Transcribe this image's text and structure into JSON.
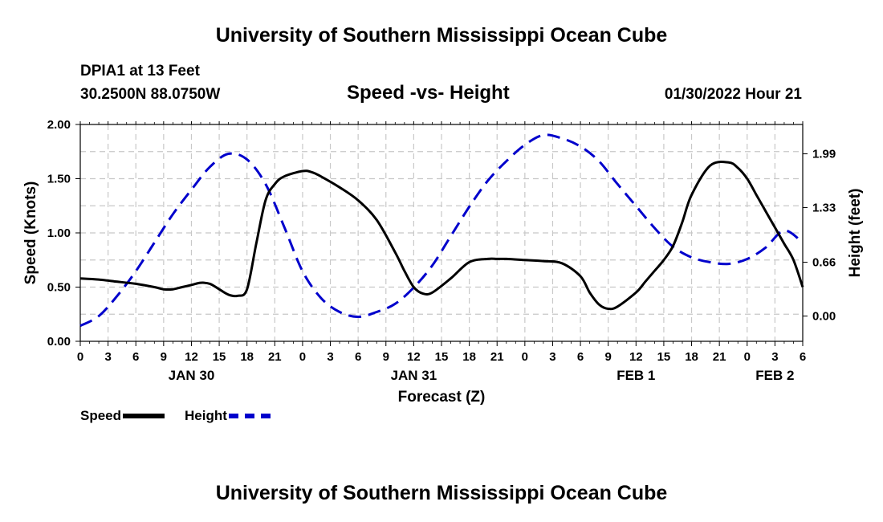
{
  "header": {
    "title": "University of Southern Mississippi Ocean Cube",
    "station": "DPIA1 at 13 Feet",
    "coordinates": "30.2500N  88.0750W",
    "chart_title": "Speed -vs- Height",
    "timestamp": "01/30/2022 Hour 21"
  },
  "footer": {
    "title": "University of Southern Mississippi Ocean Cube"
  },
  "colors": {
    "speed": "#000000",
    "height": "#0000cc",
    "grid": "#c8c8c8"
  },
  "chart_data": {
    "type": "line",
    "title": "Speed -vs- Height",
    "xlabel": "Forecast (Z)",
    "ylabel": "Speed (Knots)",
    "y2label": "Height (feet)",
    "xlim": [
      0,
      78
    ],
    "ylim": [
      0,
      2.0
    ],
    "y2lim": [
      -0.31,
      2.35
    ],
    "grid": true,
    "legend": "bottom-left",
    "x_ticks": [
      0,
      3,
      6,
      9,
      12,
      15,
      18,
      21,
      24,
      27,
      30,
      33,
      36,
      39,
      42,
      45,
      48,
      51,
      54,
      57,
      60,
      63,
      66,
      69,
      72,
      75,
      78
    ],
    "x_tick_labels": [
      "0",
      "3",
      "6",
      "9",
      "12",
      "15",
      "18",
      "21",
      "0",
      "3",
      "6",
      "9",
      "12",
      "15",
      "18",
      "21",
      "0",
      "3",
      "6",
      "9",
      "12",
      "15",
      "18",
      "21",
      "0",
      "3",
      "6"
    ],
    "y_ticks": [
      0,
      0.5,
      1.0,
      1.5,
      2.0
    ],
    "y_tick_labels": [
      "0.00",
      "0.50",
      "1.00",
      "1.50",
      "2.00"
    ],
    "y2_ticks": [
      0,
      0.66,
      1.33,
      1.99
    ],
    "y2_tick_labels": [
      "0.00",
      "0.66",
      "1.33",
      "1.99"
    ],
    "date_labels": [
      {
        "x": 12,
        "label": "JAN 30"
      },
      {
        "x": 36,
        "label": "JAN 31"
      },
      {
        "x": 60,
        "label": "FEB 1"
      },
      {
        "x": 75,
        "label": "FEB 2"
      }
    ],
    "series": [
      {
        "name": "Speed",
        "axis": "left",
        "style": "solid",
        "x": [
          0,
          2,
          4,
          6,
          8,
          9,
          10,
          11,
          12,
          13,
          14,
          15,
          16,
          17,
          18,
          19,
          20,
          21,
          22,
          24,
          25,
          26,
          28,
          30,
          32,
          34,
          35,
          36,
          37,
          38,
          40,
          42,
          44,
          45,
          46,
          48,
          50,
          52,
          54,
          55,
          56,
          57,
          58,
          60,
          61,
          62,
          63,
          64,
          65,
          66,
          68,
          70,
          71,
          72,
          73,
          74,
          75,
          76,
          77,
          78
        ],
        "values": [
          0.58,
          0.57,
          0.55,
          0.53,
          0.5,
          0.48,
          0.48,
          0.5,
          0.52,
          0.54,
          0.53,
          0.48,
          0.43,
          0.42,
          0.48,
          0.9,
          1.3,
          1.45,
          1.52,
          1.57,
          1.56,
          1.52,
          1.42,
          1.3,
          1.12,
          0.82,
          0.65,
          0.5,
          0.44,
          0.45,
          0.58,
          0.73,
          0.76,
          0.76,
          0.76,
          0.75,
          0.74,
          0.72,
          0.6,
          0.45,
          0.34,
          0.3,
          0.32,
          0.45,
          0.55,
          0.65,
          0.75,
          0.88,
          1.1,
          1.35,
          1.62,
          1.65,
          1.6,
          1.5,
          1.35,
          1.2,
          1.05,
          0.9,
          0.75,
          0.5
        ]
      },
      {
        "name": "Height",
        "axis": "right",
        "style": "dashed",
        "x": [
          0,
          2,
          4,
          6,
          8,
          10,
          12,
          14,
          16,
          18,
          20,
          22,
          24,
          26,
          28,
          30,
          32,
          34,
          36,
          38,
          40,
          42,
          44,
          46,
          48,
          50,
          52,
          54,
          56,
          58,
          60,
          62,
          64,
          66,
          68,
          70,
          72,
          74,
          76,
          78
        ],
        "values": [
          -0.12,
          0.0,
          0.25,
          0.55,
          0.9,
          1.25,
          1.55,
          1.83,
          1.99,
          1.92,
          1.62,
          1.1,
          0.55,
          0.22,
          0.05,
          -0.01,
          0.05,
          0.15,
          0.35,
          0.62,
          0.98,
          1.34,
          1.66,
          1.9,
          2.1,
          2.22,
          2.18,
          2.08,
          1.9,
          1.62,
          1.35,
          1.08,
          0.85,
          0.72,
          0.66,
          0.64,
          0.7,
          0.84,
          1.05,
          0.9
        ]
      }
    ]
  },
  "legend": {
    "speed_label": "Speed",
    "height_label": "Height"
  }
}
